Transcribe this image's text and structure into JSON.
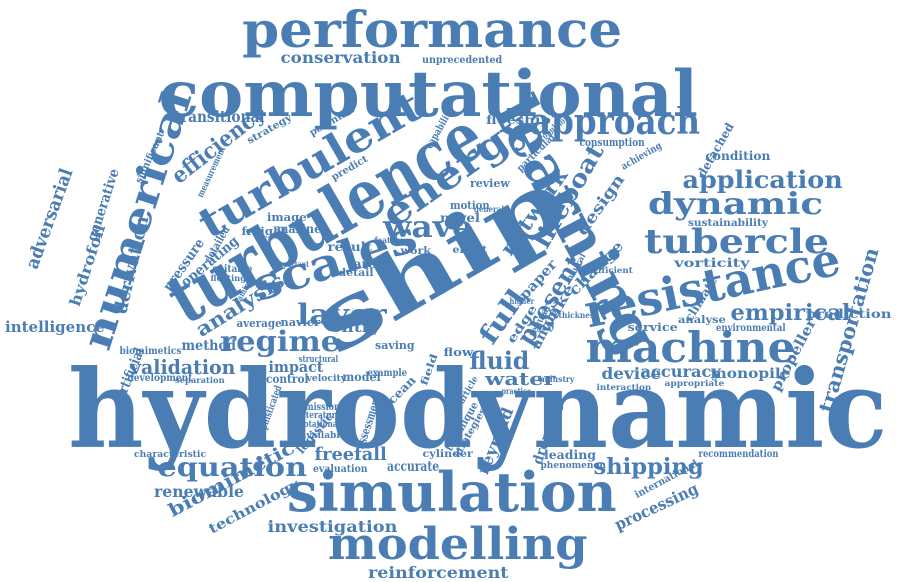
{
  "colors": {
    "ink": "#4a7db3",
    "background": "#ffffff"
  },
  "words": [
    "hydrodynamic",
    "ship",
    "turbulence",
    "learning",
    "computational",
    "performance",
    "simulation",
    "turbulent",
    "resistance",
    "numerical",
    "machine",
    "modelling",
    "scales",
    "energy",
    "approach",
    "wave",
    "tubercle",
    "lifeboat",
    "network",
    "dynamic",
    "application",
    "empirical",
    "regime",
    "equation",
    "layer",
    "full",
    "fluid",
    "efficiency",
    "present",
    "transportation",
    "analysis",
    "shipping",
    "validation",
    "investigation",
    "water",
    "reinforcement",
    "freefall",
    "accuracy",
    "device",
    "biomimetic",
    "derivation",
    "conservation",
    "transitional",
    "processing",
    "renewable",
    "technology",
    "adversarial",
    "hydrofoil",
    "generative",
    "design",
    "wake",
    "intelligence",
    "propeller",
    "monopile",
    "prediction",
    "entry",
    "impact",
    "vorticity",
    "change",
    "reynold",
    "accurate",
    "method",
    "operating",
    "pressure",
    "angle",
    "dropping",
    "leading",
    "sustainability",
    "condition",
    "detached",
    "consumption",
    "floeship",
    "marine",
    "novel",
    "motion",
    "review",
    "artificial",
    "development",
    "control",
    "service",
    "paper",
    "arctic",
    "result",
    "effect",
    "work",
    "edge",
    "potential",
    "strategy",
    "recommendation",
    "international",
    "phenomenon",
    "cylinder",
    "evaluation",
    "logistic",
    "assessment",
    "ocean",
    "model",
    "saving",
    "field",
    "flow",
    "example",
    "structural",
    "navier",
    "average",
    "biomimetics",
    "image",
    "freight",
    "detailed",
    "suitable",
    "detail",
    "analyse",
    "environmental",
    "climate",
    "efficient",
    "interaction",
    "appropriate",
    "capability",
    "achieving",
    "unprecedented",
    "predict",
    "particular",
    "significant",
    "measurement",
    "technique",
    "strategies",
    "sophisticated",
    "emission",
    "literature",
    "rotational",
    "velocity",
    "available",
    "characteristic",
    "separation",
    "floating",
    "laminar",
    "important",
    "thickness",
    "general",
    "industry",
    "practice",
    "regular",
    "neural",
    "article",
    "higher",
    "feature",
    "propulsion"
  ]
}
